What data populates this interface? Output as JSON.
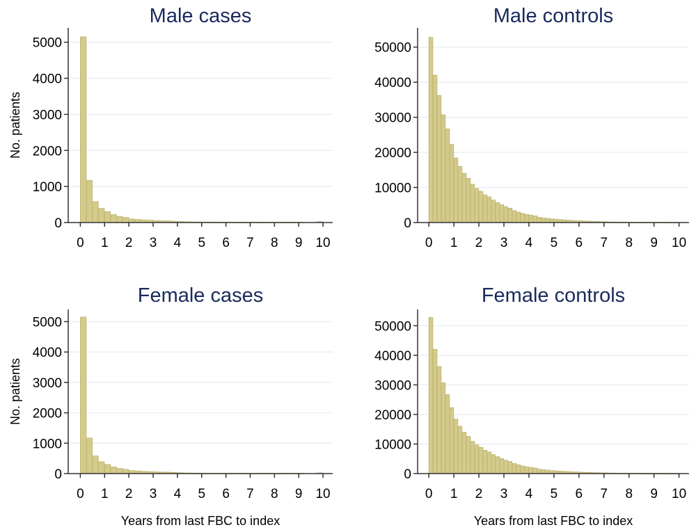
{
  "chart_data": [
    {
      "type": "bar",
      "title": "Male cases",
      "ylabel": "No. patients",
      "xlabel": "",
      "bin_width": 0.25,
      "x_start": 0,
      "values": [
        5150,
        1170,
        580,
        390,
        300,
        220,
        170,
        140,
        100,
        85,
        75,
        65,
        55,
        50,
        45,
        35,
        28,
        22,
        18,
        15,
        14,
        13,
        12,
        12,
        11,
        11,
        10,
        10,
        10,
        10,
        9,
        9,
        9,
        9,
        8,
        8,
        8,
        0,
        0,
        25
      ],
      "xlim": [
        -0.5,
        10.4
      ],
      "ylim": [
        0,
        5400
      ],
      "xticks": [
        "0",
        "1",
        "2",
        "3",
        "4",
        "5",
        "6",
        "7",
        "8",
        "9",
        "10"
      ],
      "yticks": [
        "0",
        "1000",
        "2000",
        "3000",
        "4000",
        "5000"
      ],
      "grid": true
    },
    {
      "type": "bar",
      "title": "Male controls",
      "ylabel": "",
      "xlabel": "",
      "bin_width": 0.1667,
      "x_start": 0,
      "values": [
        52800,
        42000,
        36200,
        30700,
        26700,
        22300,
        18400,
        16000,
        14000,
        12600,
        10900,
        9700,
        8900,
        7900,
        7300,
        6400,
        5700,
        5100,
        4500,
        4100,
        3400,
        3000,
        2600,
        2300,
        2100,
        1900,
        1500,
        1300,
        1200,
        1000,
        950,
        850,
        760,
        680,
        600,
        540,
        480,
        420,
        370,
        330,
        290,
        250,
        220,
        190,
        165,
        140,
        120,
        105,
        90,
        80,
        70,
        60,
        55,
        50,
        45,
        40,
        35,
        30,
        28,
        25
      ],
      "xlim": [
        -0.45,
        10.4
      ],
      "ylim": [
        0,
        55500
      ],
      "xticks": [
        "0",
        "1",
        "2",
        "3",
        "4",
        "5",
        "6",
        "7",
        "8",
        "9",
        "10"
      ],
      "yticks": [
        "0",
        "10000",
        "20000",
        "30000",
        "40000",
        "50000"
      ],
      "grid": true
    },
    {
      "type": "bar",
      "title": "Female cases",
      "ylabel": "No. patients",
      "xlabel": "Years from last FBC to index",
      "bin_width": 0.25,
      "x_start": 0,
      "values": [
        5150,
        1170,
        580,
        390,
        300,
        220,
        170,
        140,
        100,
        85,
        75,
        65,
        55,
        50,
        45,
        35,
        28,
        22,
        18,
        15,
        14,
        13,
        12,
        12,
        11,
        11,
        10,
        10,
        10,
        10,
        9,
        9,
        9,
        9,
        8,
        8,
        8,
        0,
        0,
        25
      ],
      "xlim": [
        -0.5,
        10.4
      ],
      "ylim": [
        0,
        5400
      ],
      "xticks": [
        "0",
        "1",
        "2",
        "3",
        "4",
        "5",
        "6",
        "7",
        "8",
        "9",
        "10"
      ],
      "yticks": [
        "0",
        "1000",
        "2000",
        "3000",
        "4000",
        "5000"
      ],
      "grid": true
    },
    {
      "type": "bar",
      "title": "Female controls",
      "ylabel": "",
      "xlabel": "Years from last FBC to index",
      "bin_width": 0.1667,
      "x_start": 0,
      "values": [
        52800,
        42000,
        36200,
        30700,
        26700,
        22300,
        18400,
        16000,
        14000,
        12600,
        10900,
        9700,
        8900,
        7900,
        7300,
        6400,
        5700,
        5100,
        4500,
        4100,
        3400,
        3000,
        2600,
        2300,
        2100,
        1900,
        1500,
        1300,
        1200,
        1000,
        950,
        850,
        760,
        680,
        600,
        540,
        480,
        420,
        370,
        330,
        290,
        250,
        220,
        190,
        165,
        140,
        120,
        105,
        90,
        80,
        70,
        60,
        55,
        50,
        45,
        40,
        35,
        30,
        28,
        25
      ],
      "xlim": [
        -0.45,
        10.4
      ],
      "ylim": [
        0,
        55500
      ],
      "xticks": [
        "0",
        "1",
        "2",
        "3",
        "4",
        "5",
        "6",
        "7",
        "8",
        "9",
        "10"
      ],
      "yticks": [
        "0",
        "10000",
        "20000",
        "30000",
        "40000",
        "50000"
      ],
      "grid": true
    }
  ],
  "colors": {
    "bar_fill": "#d3ca8c",
    "bar_edge": "#bdb46e",
    "title": "#1a2a5c",
    "grid": "#e8f0f4"
  }
}
